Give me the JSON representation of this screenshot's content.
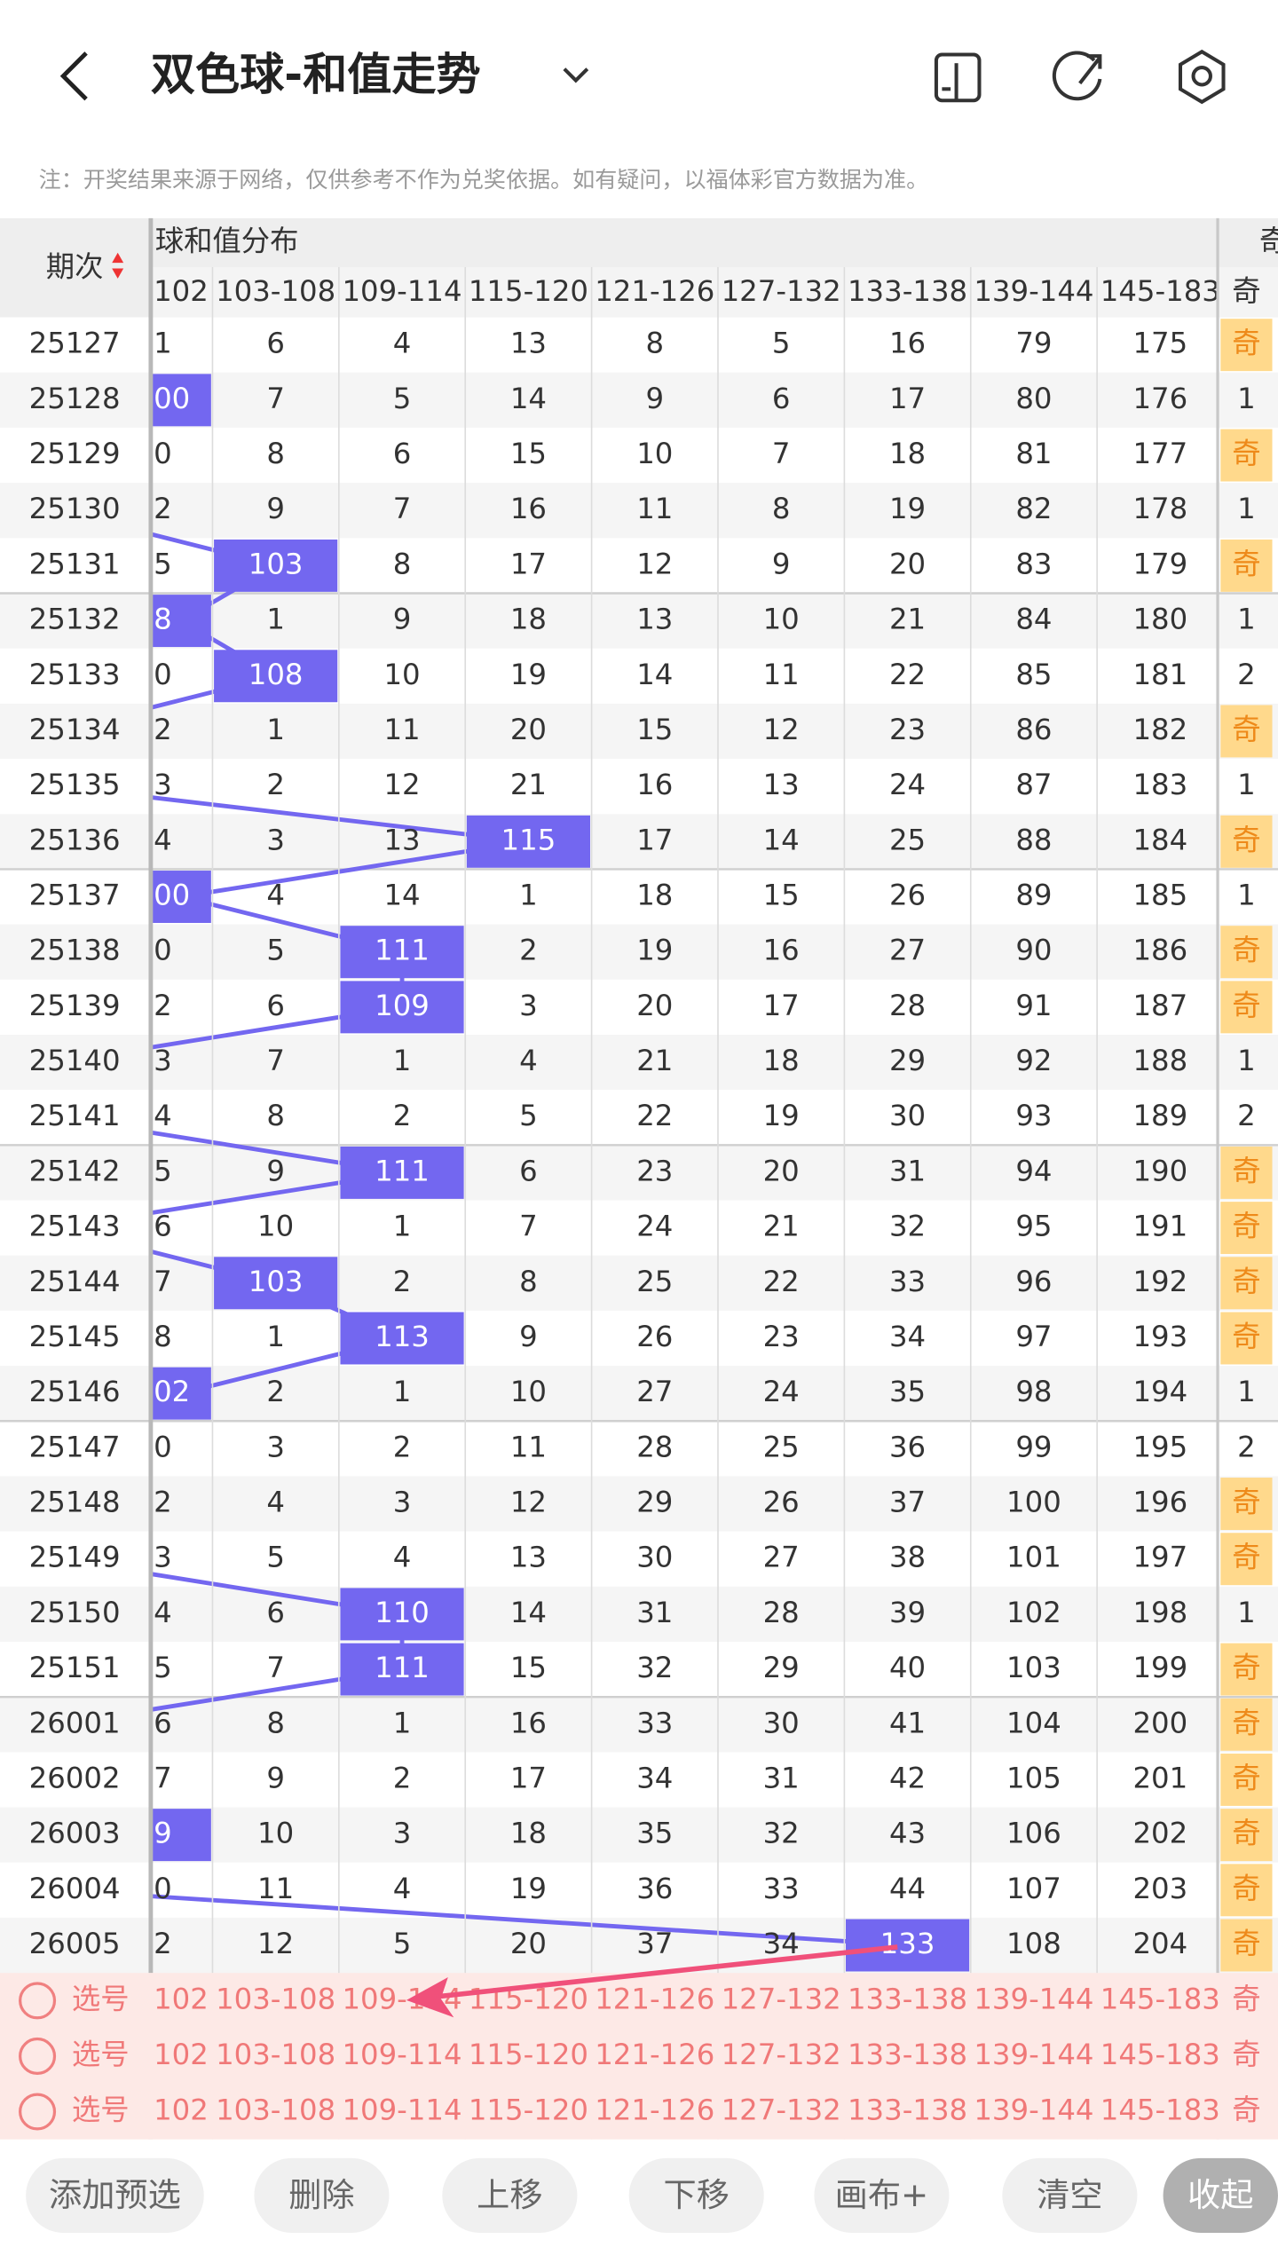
{
  "header": {
    "title": "双色球-和值走势",
    "note": "注：开奖结果来源于网络，仅供参考不作为兑奖依据。如有疑问，以福体彩官方数据为准。"
  },
  "table": {
    "period_label": "期次",
    "group_label": "球和值分布",
    "odd_label": "奇",
    "odd_sub": "奇",
    "columns": [
      "102",
      "103-108",
      "109-114",
      "115-120",
      "121-126",
      "127-132",
      "133-138",
      "139-144",
      "145-183"
    ],
    "rows": [
      [
        25127,
        "1",
        6,
        4,
        13,
        8,
        5,
        16,
        79,
        175,
        "奇"
      ],
      [
        25128,
        "00",
        7,
        5,
        14,
        9,
        6,
        17,
        80,
        176,
        1
      ],
      [
        25129,
        "0",
        8,
        6,
        15,
        10,
        7,
        18,
        81,
        177,
        "奇"
      ],
      [
        25130,
        "2",
        9,
        7,
        16,
        11,
        8,
        19,
        82,
        178,
        1
      ],
      [
        25131,
        "5",
        103,
        8,
        17,
        12,
        9,
        20,
        83,
        179,
        "奇"
      ],
      [
        25132,
        "8",
        1,
        9,
        18,
        13,
        10,
        21,
        84,
        180,
        1
      ],
      [
        25133,
        "0",
        108,
        10,
        19,
        14,
        11,
        22,
        85,
        181,
        2
      ],
      [
        25134,
        "2",
        1,
        11,
        20,
        15,
        12,
        23,
        86,
        182,
        "奇"
      ],
      [
        25135,
        "3",
        2,
        12,
        21,
        16,
        13,
        24,
        87,
        183,
        1
      ],
      [
        25136,
        "4",
        3,
        13,
        115,
        17,
        14,
        25,
        88,
        184,
        "奇"
      ],
      [
        25137,
        "00",
        4,
        14,
        1,
        18,
        15,
        26,
        89,
        185,
        1
      ],
      [
        25138,
        "0",
        5,
        111,
        2,
        19,
        16,
        27,
        90,
        186,
        "奇"
      ],
      [
        25139,
        "2",
        6,
        109,
        3,
        20,
        17,
        28,
        91,
        187,
        "奇"
      ],
      [
        25140,
        "3",
        7,
        1,
        4,
        21,
        18,
        29,
        92,
        188,
        1
      ],
      [
        25141,
        "4",
        8,
        2,
        5,
        22,
        19,
        30,
        93,
        189,
        2
      ],
      [
        25142,
        "5",
        9,
        111,
        6,
        23,
        20,
        31,
        94,
        190,
        "奇"
      ],
      [
        25143,
        "6",
        10,
        1,
        7,
        24,
        21,
        32,
        95,
        191,
        "奇"
      ],
      [
        25144,
        "7",
        103,
        2,
        8,
        25,
        22,
        33,
        96,
        192,
        "奇"
      ],
      [
        25145,
        "8",
        1,
        113,
        9,
        26,
        23,
        34,
        97,
        193,
        "奇"
      ],
      [
        25146,
        "02",
        2,
        1,
        10,
        27,
        24,
        35,
        98,
        194,
        1
      ],
      [
        25147,
        "0",
        3,
        2,
        11,
        28,
        25,
        36,
        99,
        195,
        2
      ],
      [
        25148,
        "2",
        4,
        3,
        12,
        29,
        26,
        37,
        100,
        196,
        "奇"
      ],
      [
        25149,
        "3",
        5,
        4,
        13,
        30,
        27,
        38,
        101,
        197,
        "奇"
      ],
      [
        25150,
        "4",
        6,
        110,
        14,
        31,
        28,
        39,
        102,
        198,
        1
      ],
      [
        25151,
        "5",
        7,
        111,
        15,
        32,
        29,
        40,
        103,
        199,
        "奇"
      ],
      [
        26001,
        "6",
        8,
        1,
        16,
        33,
        30,
        41,
        104,
        200,
        "奇"
      ],
      [
        26002,
        "7",
        9,
        2,
        17,
        34,
        31,
        42,
        105,
        201,
        "奇"
      ],
      [
        26003,
        "9",
        10,
        3,
        18,
        35,
        32,
        43,
        106,
        202,
        "奇"
      ],
      [
        26004,
        "0",
        11,
        4,
        19,
        36,
        33,
        44,
        107,
        203,
        "奇"
      ],
      [
        26005,
        "2",
        12,
        5,
        20,
        37,
        34,
        133,
        108,
        204,
        "奇"
      ]
    ],
    "highlights": [
      null,
      0,
      null,
      null,
      1,
      0,
      1,
      null,
      null,
      3,
      0,
      2,
      2,
      null,
      null,
      2,
      null,
      1,
      2,
      0,
      null,
      null,
      null,
      2,
      2,
      null,
      null,
      0,
      null,
      6
    ]
  },
  "selectors": [
    {
      "label": "选号",
      "columns": [
        "102",
        "103-108",
        "109-114",
        "115-120",
        "121-126",
        "127-132",
        "133-138",
        "139-144",
        "145-183"
      ],
      "odd": "奇"
    },
    {
      "label": "选号",
      "columns": [
        "102",
        "103-108",
        "109-114",
        "115-120",
        "121-126",
        "127-132",
        "133-138",
        "139-144",
        "145-183"
      ],
      "odd": "奇"
    },
    {
      "label": "选号",
      "columns": [
        "102",
        "103-108",
        "109-114",
        "115-120",
        "121-126",
        "127-132",
        "133-138",
        "139-144",
        "145-183"
      ],
      "odd": "奇"
    }
  ],
  "buttons": [
    "添加预选",
    "删除",
    "上移",
    "下移",
    "画布+",
    "清空",
    "收起"
  ]
}
